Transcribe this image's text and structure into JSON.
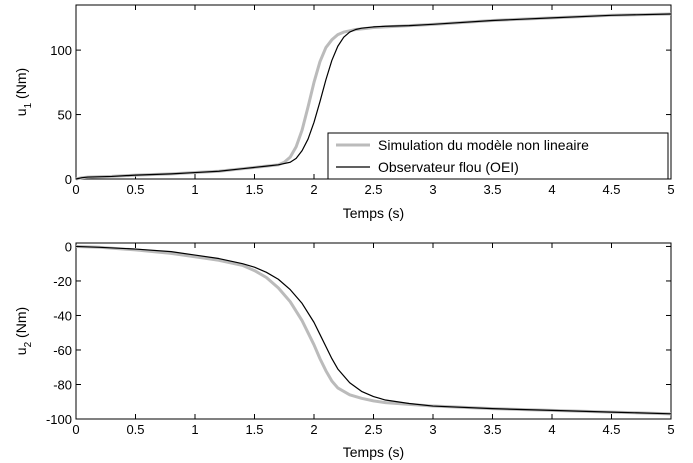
{
  "chart_data": [
    {
      "type": "line",
      "xlabel": "Temps (s)",
      "ylabel_main": "u",
      "ylabel_sub": "1",
      "ylabel_unit": " (Nm)",
      "xlim": [
        0,
        5
      ],
      "ylim": [
        0,
        135
      ],
      "xticks": [
        0,
        0.5,
        1,
        1.5,
        2,
        2.5,
        3,
        3.5,
        4,
        4.5,
        5
      ],
      "xtick_labels": [
        "0",
        "0.5",
        "1",
        "1.5",
        "2",
        "2.5",
        "3",
        "3.5",
        "4",
        "4.5",
        "5"
      ],
      "yticks": [
        0,
        50,
        100
      ],
      "ytick_labels": [
        "0",
        "50",
        "100"
      ],
      "grid": false,
      "legend": "bottom-right",
      "series": [
        {
          "name": "Simulation du modèle non lineaire",
          "color": "#bbbbbb",
          "x": [
            0,
            0.05,
            0.1,
            0.3,
            0.5,
            0.8,
            1.0,
            1.2,
            1.4,
            1.6,
            1.7,
            1.75,
            1.8,
            1.85,
            1.9,
            1.95,
            2.0,
            2.05,
            2.1,
            2.15,
            2.2,
            2.25,
            2.3,
            2.35,
            2.4,
            2.45,
            2.5,
            2.6,
            2.8,
            3.0,
            3.5,
            4.0,
            4.5,
            5.0
          ],
          "y": [
            0,
            1,
            1.5,
            2,
            3,
            4,
            5,
            6,
            8,
            10,
            11,
            13,
            17,
            25,
            38,
            56,
            75,
            91,
            102,
            108,
            112,
            114,
            115,
            116,
            116.5,
            117,
            117.5,
            118,
            119,
            120,
            123,
            125,
            127,
            128
          ]
        },
        {
          "name": "Observateur flou (OEI)",
          "color": "#000000",
          "x": [
            0,
            0.05,
            0.1,
            0.3,
            0.5,
            0.8,
            1.0,
            1.2,
            1.4,
            1.6,
            1.7,
            1.8,
            1.85,
            1.9,
            1.95,
            2.0,
            2.05,
            2.1,
            2.15,
            2.2,
            2.25,
            2.3,
            2.35,
            2.4,
            2.45,
            2.5,
            2.6,
            2.8,
            3.0,
            3.5,
            4.0,
            4.5,
            5.0
          ],
          "y": [
            0,
            1,
            1.5,
            2,
            3,
            4,
            5,
            6,
            8,
            10,
            11,
            13,
            16,
            22,
            31,
            44,
            60,
            77,
            92,
            103,
            110,
            114,
            116,
            117,
            117.5,
            118,
            118.5,
            119,
            120,
            123,
            125,
            127,
            128
          ]
        }
      ]
    },
    {
      "type": "line",
      "xlabel": "Temps (s)",
      "ylabel_main": "u",
      "ylabel_sub": "2",
      "ylabel_unit": " (Nm)",
      "xlim": [
        0,
        5
      ],
      "ylim": [
        -100,
        2
      ],
      "xticks": [
        0,
        0.5,
        1,
        1.5,
        2,
        2.5,
        3,
        3.5,
        4,
        4.5,
        5
      ],
      "xtick_labels": [
        "0",
        "0.5",
        "1",
        "1.5",
        "2",
        "2.5",
        "3",
        "3.5",
        "4",
        "4.5",
        "5"
      ],
      "yticks": [
        -100,
        -80,
        -60,
        -40,
        -20,
        0
      ],
      "ytick_labels": [
        "-100",
        "-80",
        "-60",
        "-40",
        "-20",
        "0"
      ],
      "grid": false,
      "series": [
        {
          "name": "Simulation du modèle non lineaire",
          "color": "#bbbbbb",
          "x": [
            0,
            0.2,
            0.5,
            0.8,
            1.0,
            1.2,
            1.4,
            1.5,
            1.6,
            1.7,
            1.8,
            1.9,
            2.0,
            2.05,
            2.1,
            2.15,
            2.2,
            2.3,
            2.4,
            2.5,
            2.6,
            2.8,
            3.0,
            3.5,
            4.0,
            4.5,
            5.0
          ],
          "y": [
            0,
            -0.5,
            -2,
            -4,
            -6,
            -8,
            -11,
            -14,
            -18,
            -24,
            -32,
            -43,
            -57,
            -65,
            -72,
            -78,
            -82,
            -86,
            -88,
            -89.5,
            -90.5,
            -91.5,
            -92.5,
            -94,
            -95,
            -96,
            -97
          ]
        },
        {
          "name": "Observateur flou (OEI)",
          "color": "#000000",
          "x": [
            0,
            0.2,
            0.5,
            0.8,
            1.0,
            1.2,
            1.4,
            1.5,
            1.6,
            1.7,
            1.8,
            1.9,
            2.0,
            2.05,
            2.1,
            2.15,
            2.2,
            2.3,
            2.4,
            2.5,
            2.6,
            2.8,
            3.0,
            3.5,
            4.0,
            4.5,
            5.0
          ],
          "y": [
            0,
            -0.5,
            -1.5,
            -3,
            -5,
            -7,
            -10,
            -12,
            -15,
            -19,
            -25,
            -33,
            -44,
            -51,
            -58,
            -65,
            -71,
            -79,
            -84,
            -87,
            -89,
            -91,
            -92.5,
            -94,
            -95,
            -96,
            -97
          ]
        }
      ]
    }
  ]
}
